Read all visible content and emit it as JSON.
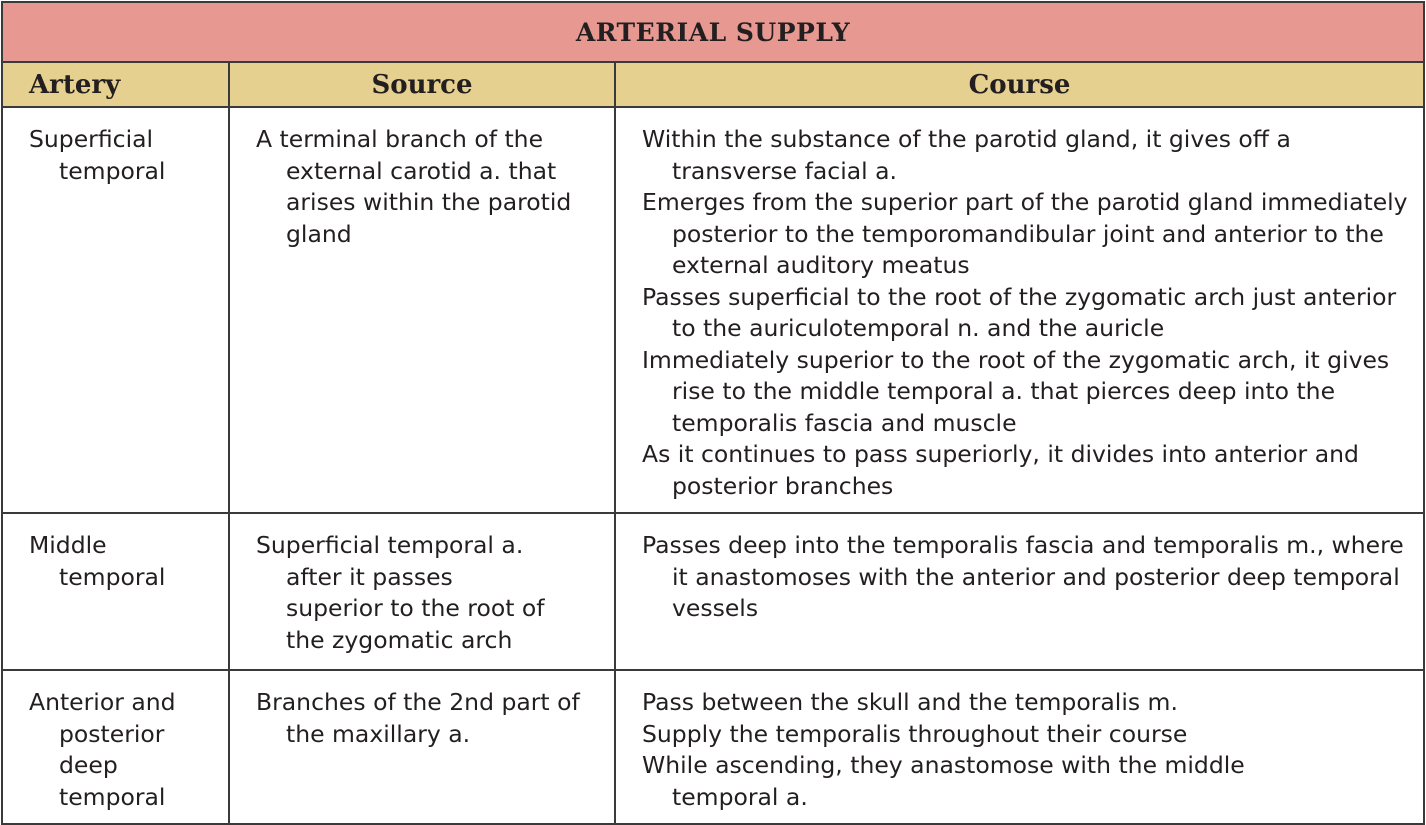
{
  "title": "ARTERIAL SUPPLY",
  "headers": [
    "Artery",
    "Source",
    "Course"
  ],
  "rows": [
    {
      "artery": "Superficial temporal",
      "source": "A terminal branch of the external carotid a. that arises within the parotid gland",
      "course": [
        "Within the substance of the parotid gland, it gives off a transverse facial a.",
        "Emerges from the superior part of the parotid gland immediately posterior to the temporomandibular joint and anterior to the external auditory meatus",
        "Passes superficial to the root of the zygomatic arch just anterior to the auriculotemporal n. and the auricle",
        "Immediately superior to the root of the zygomatic arch, it gives rise to the middle temporal a. that pierces deep into the temporalis fascia and muscle",
        "As it continues to pass superiorly, it divides into anterior and posterior branches"
      ]
    },
    {
      "artery": "Middle temporal",
      "source": "Superficial temporal a. after it passes superior to the root of the zygomatic arch",
      "course": [
        "Passes deep into the temporalis fascia and temporalis m., where it anastomoses with the anterior and posterior deep temporal vessels"
      ]
    },
    {
      "artery": "Anterior and posterior deep temporal",
      "source": "Branches of the 2nd part of the maxillary a.",
      "course": [
        "Pass between the skull and the temporalis m.",
        "Supply the temporalis throughout their course",
        "While ascending, they anastomose with the middle temporal a."
      ]
    }
  ],
  "colors": {
    "title_bg": "#e69891",
    "header_bg": "#e6d08f"
  }
}
